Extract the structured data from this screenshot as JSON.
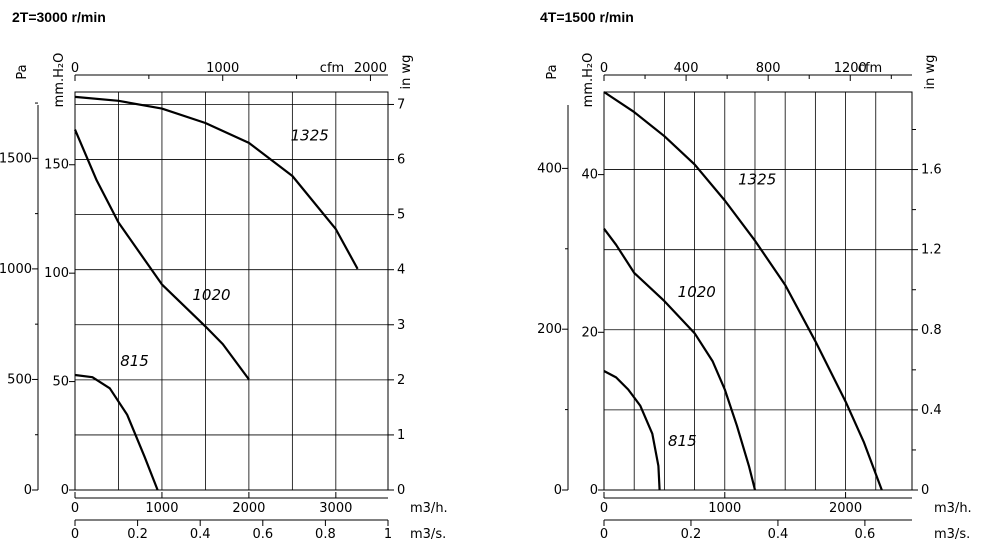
{
  "chart_data": [
    {
      "type": "line",
      "title": "2T=3000 r/min",
      "x_units": {
        "bottom1": "m3/h.",
        "bottom2": "m3/s.",
        "top": "cfm"
      },
      "y_units": {
        "left1": "Pa",
        "left2": "mm.H₂O",
        "right": "in wg"
      },
      "xlim": [
        0,
        3600
      ],
      "ylim": [
        0,
        1800
      ],
      "ticks": {
        "m3h": [
          "0",
          "1000",
          "2000",
          "3000"
        ],
        "m3s": [
          "0",
          "0.2",
          "0.4",
          "0.6",
          "0.8",
          "1"
        ],
        "cfm": [
          "0",
          "1000",
          "2000"
        ],
        "pa": [
          "0",
          "500",
          "1000",
          "1500"
        ],
        "mmh2o": [
          "0",
          "50",
          "100",
          "150"
        ],
        "inwg": [
          "0",
          "1",
          "2",
          "3",
          "4",
          "5",
          "6",
          "7"
        ]
      },
      "series": [
        {
          "name": "1325",
          "x": [
            0,
            500,
            1000,
            1500,
            2000,
            2500,
            3000,
            3250
          ],
          "y": [
            1778,
            1760,
            1725,
            1660,
            1570,
            1420,
            1180,
            1000
          ]
        },
        {
          "name": "1020",
          "x": [
            0,
            250,
            500,
            1000,
            1500,
            1700,
            2000
          ],
          "y": [
            1630,
            1400,
            1210,
            930,
            740,
            660,
            500
          ]
        },
        {
          "name": "815",
          "x": [
            0,
            200,
            400,
            600,
            800,
            950
          ],
          "y": [
            520,
            510,
            460,
            340,
            150,
            0
          ]
        }
      ]
    },
    {
      "type": "line",
      "title": "4T=1500 r/min",
      "x_units": {
        "bottom1": "m3/h.",
        "bottom2": "m3/s.",
        "top": "cfm"
      },
      "y_units": {
        "left1": "Pa",
        "left2": "mm.H₂O",
        "right": "in wg"
      },
      "xlim": [
        0,
        2550
      ],
      "ylim": [
        0,
        495
      ],
      "ticks": {
        "m3h": [
          "0",
          "1000",
          "2000"
        ],
        "m3s": [
          "0",
          "0.2",
          "0.4",
          "0.6"
        ],
        "cfm": [
          "0",
          "400",
          "800",
          "1200"
        ],
        "pa": [
          "0",
          "200",
          "400"
        ],
        "mmh2o": [
          "0",
          "20",
          "40"
        ],
        "inwg": [
          "0",
          "0.4",
          "0.8",
          "1.2",
          "1.6"
        ]
      },
      "series": [
        {
          "name": "1325",
          "x": [
            0,
            250,
            500,
            750,
            1000,
            1250,
            1500,
            1750,
            2000,
            2150,
            2300
          ],
          "y": [
            495,
            470,
            440,
            405,
            360,
            310,
            255,
            185,
            110,
            60,
            0
          ]
        },
        {
          "name": "1020",
          "x": [
            0,
            100,
            250,
            500,
            750,
            900,
            1000,
            1100,
            1200,
            1250
          ],
          "y": [
            325,
            305,
            270,
            235,
            195,
            160,
            125,
            80,
            30,
            0
          ]
        },
        {
          "name": "815",
          "x": [
            0,
            100,
            200,
            300,
            400,
            450,
            460
          ],
          "y": [
            148,
            140,
            125,
            105,
            70,
            30,
            0
          ]
        }
      ]
    }
  ]
}
